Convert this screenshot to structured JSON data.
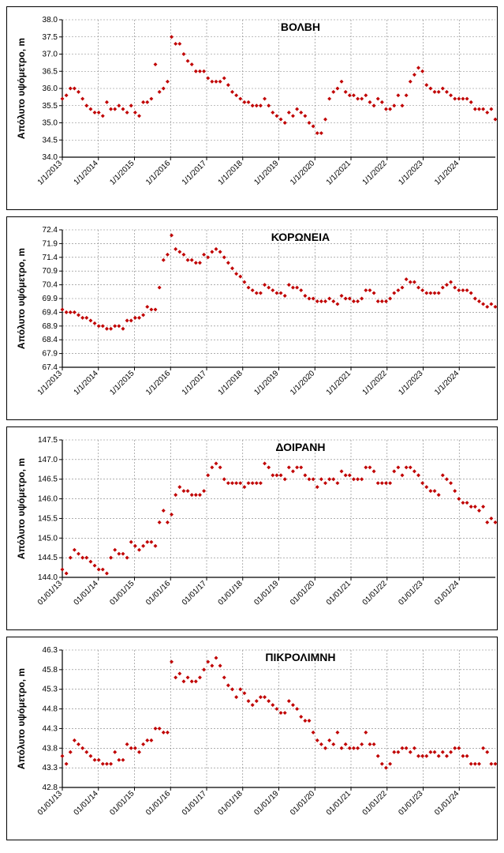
{
  "global": {
    "marker_color": "#c00000",
    "marker_size": 3.5,
    "grid_color": "#7f7f7f",
    "axis_color": "#000000",
    "background_color": "#ffffff",
    "axis_label_fontsize": 12,
    "tick_fontsize": 10,
    "title_fontsize": 14,
    "title_weight": "bold",
    "ylabel": "Απόλυτο υψόμετρο, m"
  },
  "charts": [
    {
      "title": "ΒΟΛΒΗ",
      "ylim": [
        34.0,
        38.0
      ],
      "ystep": 0.5,
      "xticks": [
        "1/1/2013",
        "1/1/2014",
        "1/1/2015",
        "1/1/2016",
        "1/1/2017",
        "1/1/2018",
        "1/1/2019",
        "1/1/2020",
        "1/1/2021",
        "1/1/2022",
        "1/1/2023",
        "1/1/2024"
      ],
      "data": [
        35.7,
        35.8,
        36.0,
        36.0,
        35.9,
        35.7,
        35.5,
        35.4,
        35.3,
        35.3,
        35.2,
        35.6,
        35.4,
        35.4,
        35.5,
        35.4,
        35.3,
        35.5,
        35.3,
        35.2,
        35.6,
        35.6,
        35.7,
        36.7,
        35.9,
        36.0,
        36.2,
        37.5,
        37.3,
        37.3,
        37.0,
        36.8,
        36.7,
        36.5,
        36.5,
        36.5,
        36.3,
        36.2,
        36.2,
        36.2,
        36.3,
        36.1,
        35.9,
        35.8,
        35.7,
        35.6,
        35.6,
        35.5,
        35.5,
        35.5,
        35.7,
        35.5,
        35.3,
        35.2,
        35.1,
        35.0,
        35.3,
        35.2,
        35.4,
        35.3,
        35.2,
        35.0,
        34.9,
        34.7,
        34.7,
        35.1,
        35.7,
        35.9,
        36.0,
        36.2,
        35.9,
        35.8,
        35.8,
        35.7,
        35.7,
        35.8,
        35.6,
        35.5,
        35.7,
        35.6,
        35.4,
        35.4,
        35.5,
        35.8,
        35.5,
        35.8,
        36.2,
        36.4,
        36.6,
        36.5,
        36.1,
        36.0,
        35.9,
        35.9,
        36.0,
        35.9,
        35.8,
        35.7,
        35.7,
        35.7,
        35.7,
        35.6,
        35.4,
        35.4,
        35.4,
        35.3,
        35.4,
        35.1
      ]
    },
    {
      "title": "ΚΟΡΩΝΕΙΑ",
      "ylim": [
        67.4,
        72.4
      ],
      "ystep": 0.5,
      "xticks": [
        "1/1/2013",
        "1/1/2014",
        "1/1/2015",
        "1/1/2016",
        "1/1/2017",
        "1/1/2018",
        "1/1/2019",
        "1/1/2020",
        "1/1/2021",
        "1/1/2022",
        "1/1/2023",
        "1/1/2024"
      ],
      "data": [
        69.5,
        69.4,
        69.4,
        69.4,
        69.3,
        69.2,
        69.2,
        69.1,
        69.0,
        68.9,
        68.9,
        68.8,
        68.8,
        68.9,
        68.9,
        68.8,
        69.1,
        69.1,
        69.2,
        69.2,
        69.3,
        69.6,
        69.5,
        69.5,
        70.3,
        71.3,
        71.5,
        72.2,
        71.7,
        71.6,
        71.5,
        71.3,
        71.3,
        71.2,
        71.2,
        71.5,
        71.4,
        71.6,
        71.7,
        71.6,
        71.4,
        71.2,
        71.0,
        70.8,
        70.7,
        70.5,
        70.3,
        70.2,
        70.1,
        70.1,
        70.4,
        70.3,
        70.2,
        70.1,
        70.1,
        70.0,
        70.4,
        70.3,
        70.3,
        70.2,
        70.0,
        69.9,
        69.9,
        69.8,
        69.8,
        69.8,
        69.9,
        69.8,
        69.7,
        70.0,
        69.9,
        69.9,
        69.8,
        69.8,
        69.9,
        70.2,
        70.2,
        70.1,
        69.8,
        69.8,
        69.8,
        69.9,
        70.1,
        70.2,
        70.3,
        70.6,
        70.5,
        70.5,
        70.3,
        70.2,
        70.1,
        70.1,
        70.1,
        70.1,
        70.3,
        70.4,
        70.5,
        70.3,
        70.2,
        70.2,
        70.2,
        70.1,
        69.9,
        69.8,
        69.7,
        69.6,
        69.7,
        69.6
      ]
    },
    {
      "title": "ΔΟΙΡΑΝΗ",
      "ylim": [
        144.0,
        147.5
      ],
      "ystep": 0.5,
      "xticks": [
        "01/01/13",
        "01/01/14",
        "01/01/15",
        "01/01/16",
        "01/01/17",
        "01/01/18",
        "01/01/19",
        "01/01/20",
        "01/01/21",
        "01/01/22",
        "01/01/23",
        "01/01/24"
      ],
      "data": [
        144.2,
        144.1,
        144.5,
        144.7,
        144.6,
        144.5,
        144.5,
        144.4,
        144.3,
        144.2,
        144.2,
        144.1,
        144.5,
        144.7,
        144.6,
        144.6,
        144.5,
        144.9,
        144.8,
        144.7,
        144.8,
        144.9,
        144.9,
        144.8,
        145.4,
        145.7,
        145.4,
        145.6,
        146.1,
        146.3,
        146.2,
        146.2,
        146.1,
        146.1,
        146.1,
        146.2,
        146.6,
        146.8,
        146.9,
        146.8,
        146.5,
        146.4,
        146.4,
        146.4,
        146.4,
        146.3,
        146.4,
        146.4,
        146.4,
        146.4,
        146.9,
        146.8,
        146.6,
        146.6,
        146.6,
        146.5,
        146.8,
        146.7,
        146.8,
        146.8,
        146.6,
        146.5,
        146.5,
        146.3,
        146.5,
        146.4,
        146.5,
        146.5,
        146.4,
        146.7,
        146.6,
        146.6,
        146.5,
        146.5,
        146.5,
        146.8,
        146.8,
        146.7,
        146.4,
        146.4,
        146.4,
        146.4,
        146.7,
        146.8,
        146.6,
        146.8,
        146.8,
        146.7,
        146.6,
        146.4,
        146.3,
        146.2,
        146.2,
        146.1,
        146.6,
        146.5,
        146.4,
        146.2,
        146.0,
        145.9,
        145.9,
        145.8,
        145.8,
        145.7,
        145.8,
        145.4,
        145.5,
        145.4
      ]
    },
    {
      "title": "ΠΙΚΡΟΛΙΜΝΗ",
      "ylim": [
        42.8,
        46.3
      ],
      "ystep": 0.5,
      "xticks": [
        "01/01/13",
        "01/01/14",
        "01/01/15",
        "01/01/16",
        "01/01/17",
        "01/01/18",
        "01/01/19",
        "01/01/20",
        "01/01/21",
        "01/01/22",
        "01/01/23",
        "01/01/24"
      ],
      "data": [
        43.6,
        43.4,
        43.7,
        44.0,
        43.9,
        43.8,
        43.7,
        43.6,
        43.5,
        43.5,
        43.4,
        43.4,
        43.4,
        43.7,
        43.5,
        43.5,
        43.9,
        43.8,
        43.8,
        43.7,
        43.9,
        44.0,
        44.0,
        44.3,
        44.3,
        44.2,
        44.2,
        46.0,
        45.6,
        45.7,
        45.5,
        45.6,
        45.5,
        45.5,
        45.6,
        45.8,
        46.0,
        45.9,
        46.1,
        45.9,
        45.6,
        45.4,
        45.3,
        45.1,
        45.3,
        45.2,
        45.0,
        44.9,
        45.0,
        45.1,
        45.1,
        45.0,
        44.9,
        44.8,
        44.7,
        44.7,
        45.0,
        44.9,
        44.8,
        44.6,
        44.5,
        44.5,
        44.2,
        44.0,
        43.9,
        43.8,
        44.0,
        43.9,
        44.2,
        43.8,
        43.9,
        43.8,
        43.8,
        43.8,
        43.9,
        44.2,
        43.9,
        43.9,
        43.6,
        43.4,
        43.3,
        43.4,
        43.7,
        43.7,
        43.8,
        43.8,
        43.7,
        43.8,
        43.6,
        43.6,
        43.6,
        43.7,
        43.7,
        43.6,
        43.7,
        43.6,
        43.7,
        43.8,
        43.8,
        43.6,
        43.6,
        43.4,
        43.4,
        43.4,
        43.8,
        43.7,
        43.4,
        43.4
      ]
    }
  ]
}
